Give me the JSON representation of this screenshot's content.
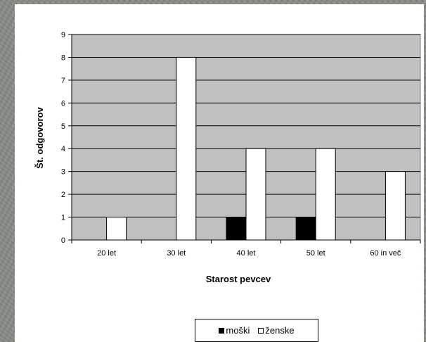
{
  "chart_data": {
    "type": "bar",
    "categories": [
      "20 let",
      "30 let",
      "40 let",
      "50 let",
      "60 in več"
    ],
    "series": [
      {
        "name": "moški",
        "values": [
          0,
          0,
          1,
          1,
          0
        ],
        "color": "#000000"
      },
      {
        "name": "ženske",
        "values": [
          1,
          8,
          4,
          4,
          3
        ],
        "color": "#ffffff"
      }
    ],
    "title": "",
    "xlabel": "Starost pevcev",
    "ylabel": "Št. odgovorov",
    "ylim": [
      0,
      9
    ],
    "yticks": [
      0,
      1,
      2,
      3,
      4,
      5,
      6,
      7,
      8,
      9
    ],
    "grid": true,
    "plot_background": "#c0c0c0",
    "legend_position": "bottom"
  }
}
